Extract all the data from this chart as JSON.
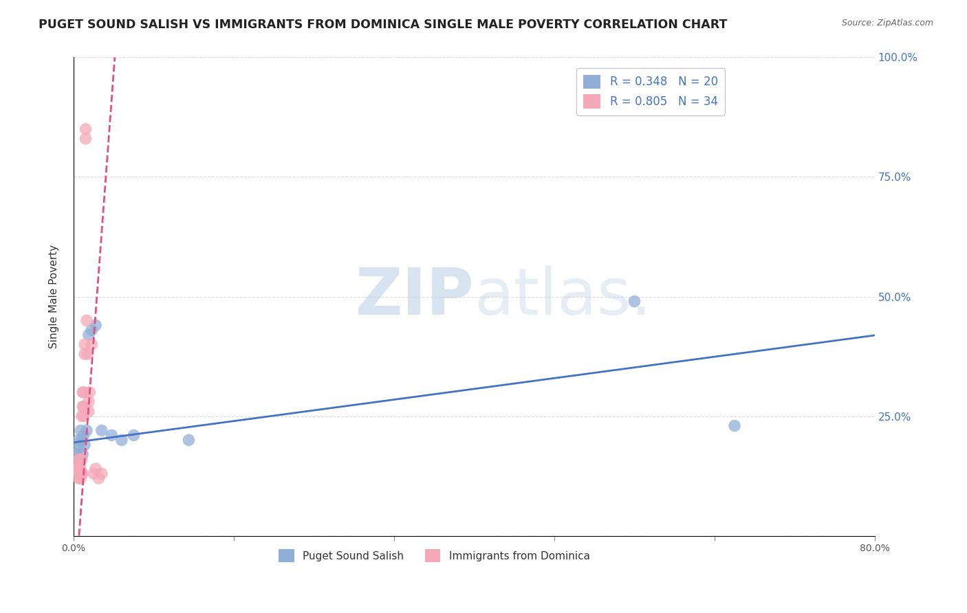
{
  "title": "PUGET SOUND SALISH VS IMMIGRANTS FROM DOMINICA SINGLE MALE POVERTY CORRELATION CHART",
  "source": "Source: ZipAtlas.com",
  "ylabel": "Single Male Poverty",
  "series1_label": "Puget Sound Salish",
  "series2_label": "Immigrants from Dominica",
  "series1_color": "#92afd7",
  "series2_color": "#f4a8b8",
  "series1_R": 0.348,
  "series1_N": 20,
  "series2_R": 0.805,
  "series2_N": 34,
  "xmin": 0.0,
  "xmax": 0.8,
  "ymin": 0.0,
  "ymax": 1.0,
  "xticks": [
    0.0,
    0.16,
    0.32,
    0.48,
    0.64,
    0.8
  ],
  "xticklabels": [
    "0.0%",
    "",
    "",
    "",
    "",
    "80.0%"
  ],
  "yticks": [
    0.0,
    0.25,
    0.5,
    0.75,
    1.0
  ],
  "yticklabels": [
    "",
    "25.0%",
    "50.0%",
    "75.0%",
    "100.0%"
  ],
  "series1_x": [
    0.003,
    0.004,
    0.005,
    0.006,
    0.007,
    0.008,
    0.009,
    0.01,
    0.011,
    0.013,
    0.015,
    0.018,
    0.022,
    0.028,
    0.038,
    0.048,
    0.06,
    0.115,
    0.56,
    0.66
  ],
  "series1_y": [
    0.17,
    0.18,
    0.2,
    0.19,
    0.22,
    0.2,
    0.17,
    0.21,
    0.19,
    0.22,
    0.42,
    0.43,
    0.44,
    0.22,
    0.21,
    0.2,
    0.21,
    0.2,
    0.49,
    0.23
  ],
  "series2_x": [
    0.003,
    0.004,
    0.004,
    0.005,
    0.005,
    0.005,
    0.006,
    0.006,
    0.007,
    0.007,
    0.007,
    0.008,
    0.008,
    0.008,
    0.009,
    0.009,
    0.009,
    0.01,
    0.01,
    0.01,
    0.011,
    0.011,
    0.012,
    0.012,
    0.013,
    0.014,
    0.015,
    0.015,
    0.016,
    0.018,
    0.02,
    0.022,
    0.025,
    0.028
  ],
  "series2_y": [
    0.14,
    0.13,
    0.15,
    0.12,
    0.14,
    0.16,
    0.13,
    0.15,
    0.13,
    0.12,
    0.14,
    0.16,
    0.13,
    0.25,
    0.27,
    0.13,
    0.3,
    0.25,
    0.27,
    0.3,
    0.38,
    0.4,
    0.83,
    0.85,
    0.45,
    0.38,
    0.26,
    0.28,
    0.3,
    0.4,
    0.13,
    0.14,
    0.12,
    0.13
  ],
  "trend1_intercept": 0.195,
  "trend1_slope": 0.28,
  "trend2_intercept": -0.15,
  "trend2_slope": 28.0,
  "trend2_xmax": 0.043,
  "watermark_zip": "ZIP",
  "watermark_atlas": "atlas.",
  "legend_box_color": "#f0f0f0",
  "trend1_color": "#4472c4",
  "trend2_color": "#e05080",
  "background_color": "#ffffff",
  "grid_color": "#cccccc"
}
